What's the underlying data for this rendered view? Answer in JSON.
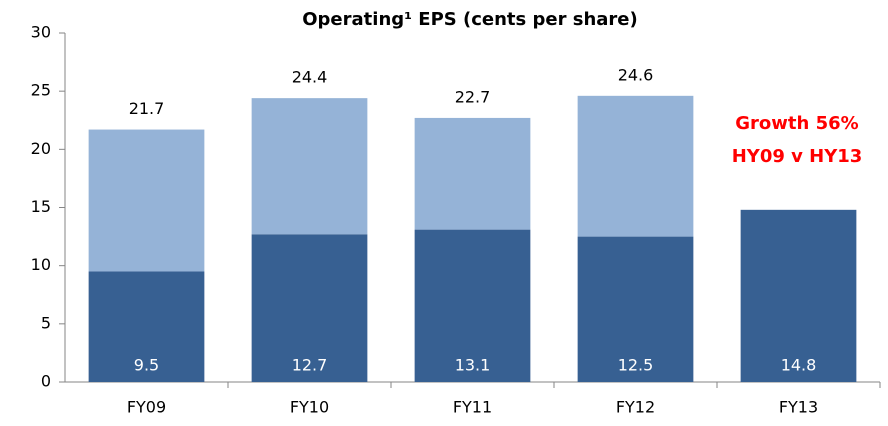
{
  "chart_data": {
    "type": "stacked_bar",
    "title": "Operating¹ EPS (cents per share)",
    "categories": [
      "FY09",
      "FY10",
      "FY11",
      "FY12",
      "FY13"
    ],
    "series": [
      {
        "color": "#376092",
        "values": [
          9.5,
          12.7,
          13.1,
          12.5,
          14.8
        ]
      },
      {
        "color": "#95b3d7",
        "values": [
          12.2,
          11.7,
          9.6,
          12.1,
          null
        ]
      }
    ],
    "totals": [
      21.7,
      24.4,
      22.7,
      24.6,
      null
    ],
    "annotations": [
      "Growth 56%",
      "HY09 v HY13"
    ],
    "annotation_color": "#ff0000",
    "ylim": [
      0,
      30
    ],
    "yticks": [
      0,
      5,
      10,
      15,
      20,
      25,
      30
    ],
    "grid": false
  }
}
